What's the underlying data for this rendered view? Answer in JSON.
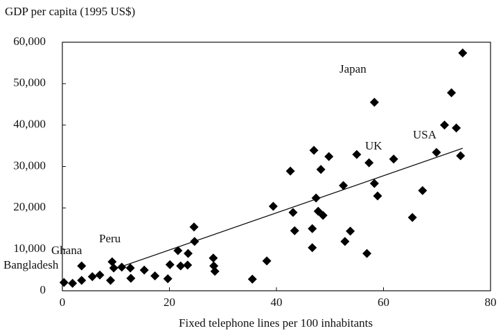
{
  "chart_data": {
    "type": "scatter",
    "title": "GDP per capita (1995 US$)",
    "x_label": "Fixed telephone lines per 100 inhabitants",
    "annotations": [
      "Japan",
      "UK",
      "USA",
      "Peru",
      "Ghana",
      "Bangladesh"
    ],
    "color": "#000000",
    "x": [
      0.3,
      1.9,
      3.6,
      3.6,
      5.6,
      7,
      9,
      9.3,
      9.6,
      11.1,
      12.7,
      12.8,
      15.3,
      17.3,
      19.7,
      20.1,
      21.6,
      22.1,
      23.4,
      23.5,
      24.6,
      24.7,
      28.2,
      28.3,
      28.5,
      35.5,
      38.2,
      39.4,
      42.6,
      43.1,
      43.4,
      47,
      47.4,
      47.8,
      48.3,
      48.7,
      46.7,
      46.7,
      49.8,
      52.5,
      52.8,
      53.8,
      55,
      56.9,
      57.3,
      58.3,
      58.3,
      58.9,
      61.9,
      65.4,
      67.3,
      69.9,
      71.4,
      72.7,
      73.6,
      74.4,
      74.8
    ],
    "y": [
      2000,
      1800,
      2500,
      6000,
      3400,
      3800,
      2500,
      7000,
      5500,
      5700,
      5500,
      3000,
      5000,
      3600,
      2900,
      6300,
      9700,
      6000,
      6200,
      9000,
      15400,
      11900,
      7900,
      6000,
      4700,
      2800,
      7200,
      20400,
      28900,
      18900,
      14500,
      33900,
      22400,
      19200,
      29300,
      18200,
      15000,
      10400,
      32400,
      25400,
      11900,
      14400,
      32900,
      9000,
      30900,
      45500,
      25900,
      22900,
      31800,
      17700,
      24200,
      33400,
      40000,
      47800,
      39300,
      32600,
      57400
    ],
    "trend_line": {
      "x": [
        11.4,
        74.8
      ],
      "y": [
        6000,
        34400
      ]
    },
    "xlim": [
      0,
      80
    ],
    "xticks": [
      0,
      20,
      40,
      60,
      80
    ],
    "ylim": [
      0,
      60000
    ],
    "yticks": [
      0,
      {
        "value": 10000,
        "label": "10,000"
      },
      {
        "value": 20000,
        "label": "20,000"
      },
      {
        "value": 30000,
        "label": "30,000"
      },
      {
        "value": 40000,
        "label": "40,000"
      },
      {
        "value": 50000,
        "label": "50,000"
      },
      {
        "value": 60000,
        "label": "60,000"
      }
    ]
  }
}
